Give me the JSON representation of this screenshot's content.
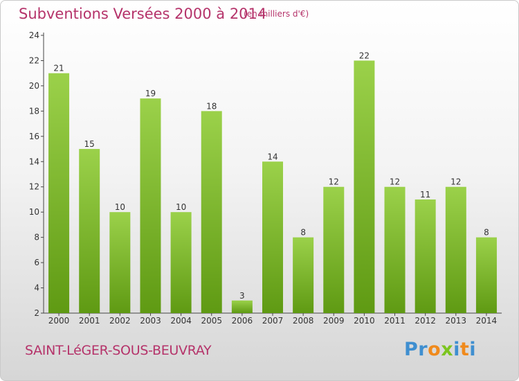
{
  "title": "Subventions Versées 2000 à 2014",
  "subtitle": "(en milliers d'€)",
  "commune": "SAINT-LéGER-SOUS-BEUVRAY",
  "logo": {
    "letters": [
      "P",
      "r",
      "o",
      "x",
      "i",
      "t",
      "i"
    ],
    "colors": [
      "#3f8fd0",
      "#3f8fd0",
      "#f08a1c",
      "#7cc520",
      "#3f8fd0",
      "#f08a1c",
      "#3f8fd0"
    ]
  },
  "colors": {
    "bar_top": "#9bd14a",
    "bar_bottom": "#5f9a13",
    "text_accent": "#b5336a"
  },
  "chart_data": {
    "type": "bar",
    "categories": [
      "2000",
      "2001",
      "2002",
      "2003",
      "2004",
      "2005",
      "2006",
      "2007",
      "2008",
      "2009",
      "2010",
      "2011",
      "2012",
      "2013",
      "2014"
    ],
    "values": [
      21,
      15,
      10,
      19,
      10,
      18,
      3,
      14,
      8,
      12,
      22,
      12,
      11,
      12,
      8
    ],
    "title": "Subventions Versées 2000 à 2014",
    "subtitle": "(en milliers d'€)",
    "ylim": [
      2,
      24
    ],
    "yticks": [
      2,
      4,
      6,
      8,
      10,
      12,
      14,
      16,
      18,
      20,
      22,
      24
    ],
    "grid": false,
    "data_labels": true
  }
}
